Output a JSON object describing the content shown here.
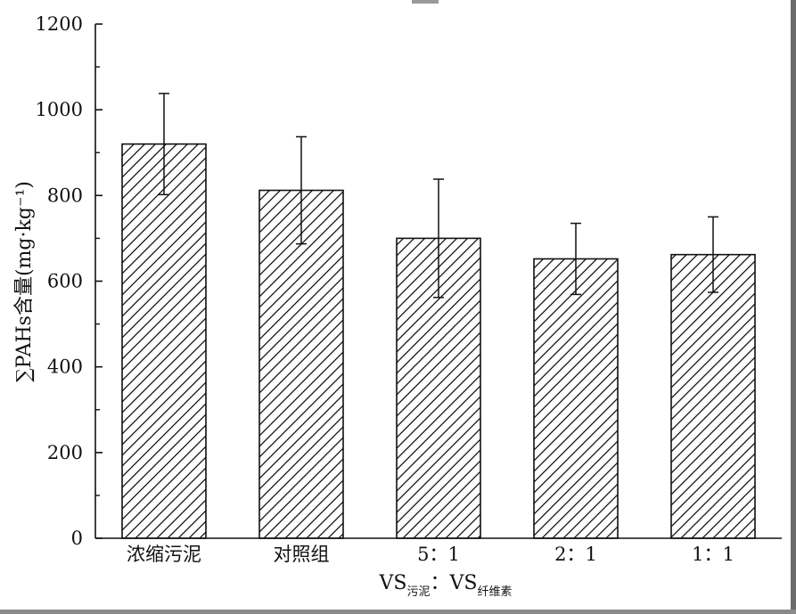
{
  "chart_data": {
    "type": "bar",
    "categories": [
      "浓缩污泥",
      "对照组",
      "5：1",
      "2：1",
      "1：1"
    ],
    "values": [
      920,
      812,
      700,
      652,
      662
    ],
    "errors": [
      118,
      125,
      138,
      83,
      88
    ],
    "ylim": [
      0,
      1200
    ],
    "yticks": [
      "0",
      "200",
      "400",
      "600",
      "800",
      "1000",
      "1200"
    ],
    "ylabel": "∑PAHs含量(mg·kg⁻¹)",
    "xlabel": {
      "main_1": "VS",
      "sub_1": "污泥",
      "sep": "：",
      "main_2": "VS",
      "sub_2": "纤维素"
    },
    "bar_fill": "hatched",
    "colors": {
      "stroke": "#111111",
      "background": "#ffffff"
    },
    "grid": false
  }
}
